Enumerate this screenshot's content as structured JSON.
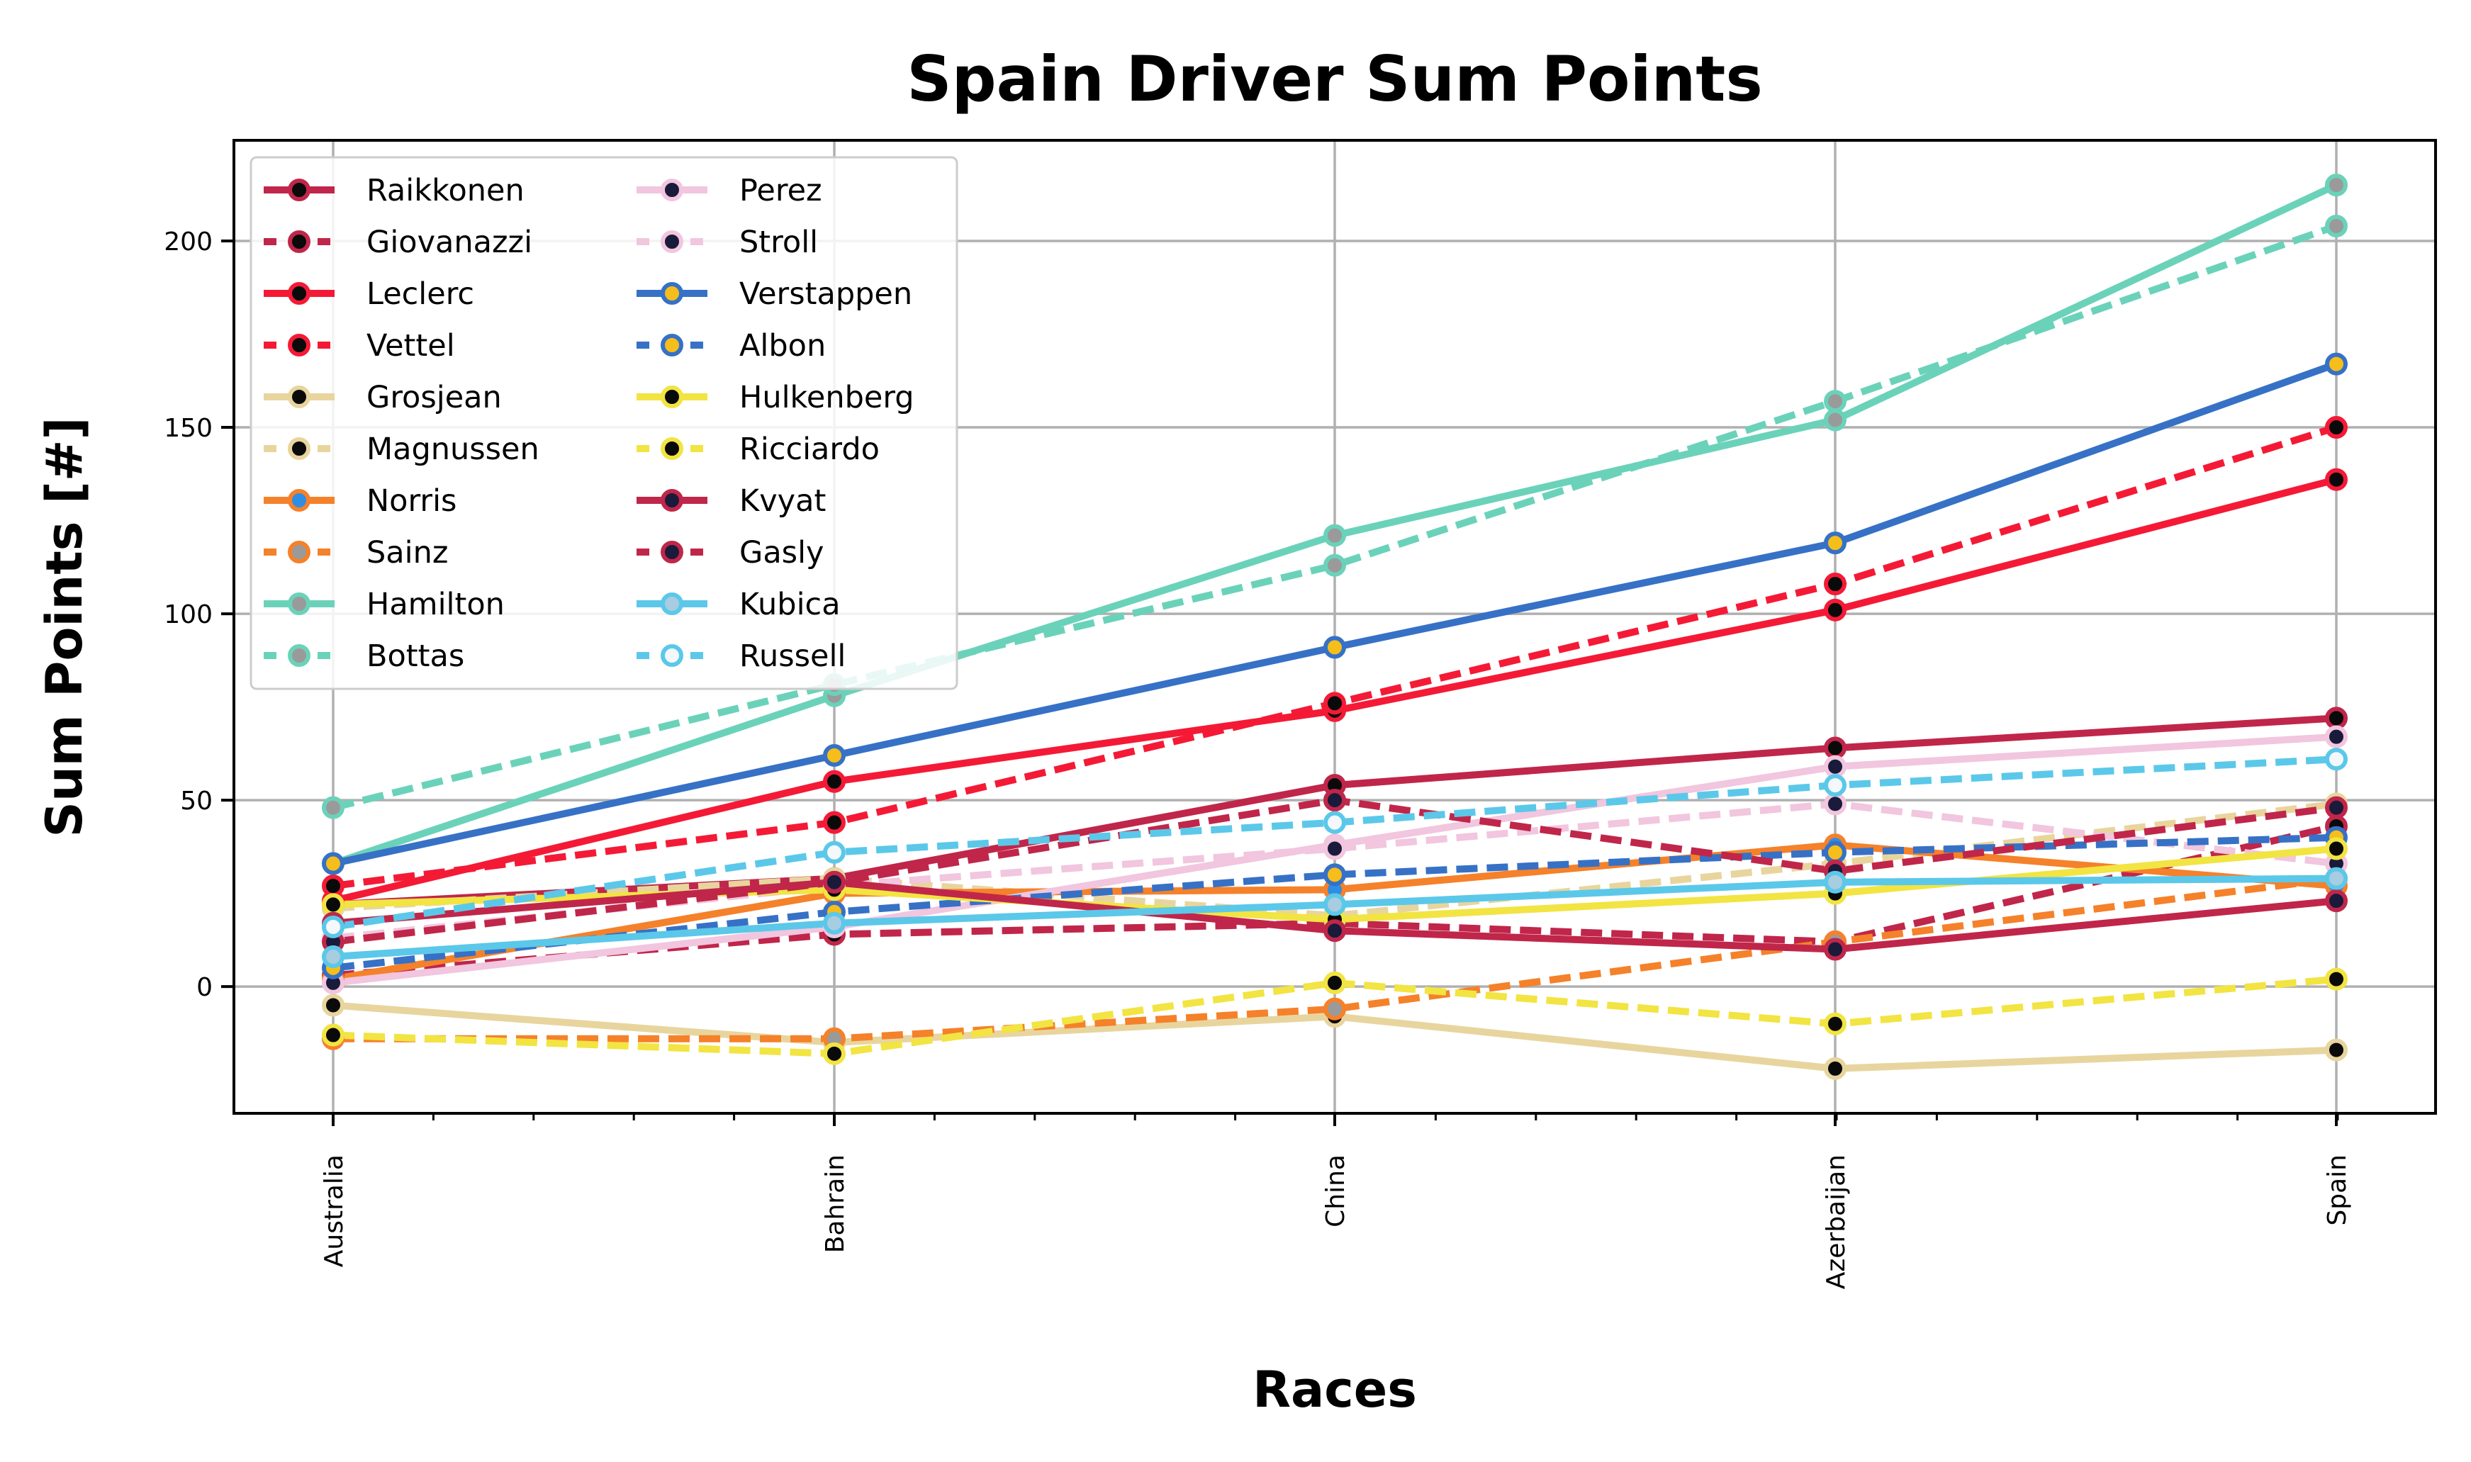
{
  "chart_data": {
    "type": "line",
    "title": "Spain Driver Sum Points",
    "xlabel": "Races",
    "ylabel": "Sum Points [#]",
    "categories": [
      "Australia",
      "Bahrain",
      "China",
      "Azerbaijan",
      "Spain"
    ],
    "ylim": [
      -34,
      227
    ],
    "yticks": [
      0,
      50,
      100,
      150,
      200
    ],
    "grid": true,
    "legend": "top-left, two columns",
    "series": [
      {
        "name": "Raikkonen",
        "color": "#C0264A",
        "dash": "solid",
        "marker": "#0a0a0a",
        "values": [
          22,
          29,
          54,
          64,
          72
        ]
      },
      {
        "name": "Giovanazzi",
        "color": "#C0264A",
        "dash": "dashed",
        "marker": "#0a0a0a",
        "values": [
          3,
          14,
          17,
          12,
          43
        ]
      },
      {
        "name": "Leclerc",
        "color": "#F41A36",
        "dash": "solid",
        "marker": "#0a0a0a",
        "values": [
          23,
          55,
          74,
          101,
          136
        ]
      },
      {
        "name": "Vettel",
        "color": "#F41A36",
        "dash": "dashed",
        "marker": "#0a0a0a",
        "values": [
          27,
          44,
          76,
          108,
          150
        ]
      },
      {
        "name": "Grosjean",
        "color": "#E8D59E",
        "dash": "solid",
        "marker": "#0a0a0a",
        "values": [
          -5,
          -15,
          -8,
          -22,
          -17
        ]
      },
      {
        "name": "Magnussen",
        "color": "#E8D59E",
        "dash": "dashed",
        "marker": "#0a0a0a",
        "values": [
          21,
          29,
          19,
          33,
          49
        ]
      },
      {
        "name": "Norris",
        "color": "#F5812A",
        "dash": "solid",
        "marker": "#2f8de4",
        "values": [
          2,
          25,
          26,
          38,
          27
        ]
      },
      {
        "name": "Sainz",
        "color": "#F5812A",
        "dash": "dashed",
        "marker": "#9a9a9a",
        "values": [
          -14,
          -14,
          -6,
          12,
          29
        ]
      },
      {
        "name": "Hamilton",
        "color": "#6BD2BA",
        "dash": "solid",
        "marker": "#9a9a9a",
        "values": [
          33,
          78,
          121,
          152,
          215
        ]
      },
      {
        "name": "Bottas",
        "color": "#6BD2BA",
        "dash": "dashed",
        "marker": "#9a9a9a",
        "values": [
          48,
          81,
          113,
          157,
          204
        ]
      },
      {
        "name": "Perez",
        "color": "#F1C6DE",
        "dash": "solid",
        "marker": "#1a1a3a",
        "values": [
          1,
          16,
          38,
          59,
          67
        ]
      },
      {
        "name": "Stroll",
        "color": "#F1C6DE",
        "dash": "dashed",
        "marker": "#1a1a3a",
        "values": [
          13,
          27,
          37,
          49,
          33
        ]
      },
      {
        "name": "Verstappen",
        "color": "#3671C6",
        "dash": "solid",
        "marker": "#F6BE1A",
        "values": [
          33,
          62,
          91,
          119,
          167
        ]
      },
      {
        "name": "Albon",
        "color": "#3671C6",
        "dash": "dashed",
        "marker": "#F6BE1A",
        "values": [
          5,
          20,
          30,
          36,
          40
        ]
      },
      {
        "name": "Hulkenberg",
        "color": "#F2E442",
        "dash": "solid",
        "marker": "#0a0a0a",
        "values": [
          22,
          26,
          18,
          25,
          37
        ]
      },
      {
        "name": "Ricciardo",
        "color": "#F2E442",
        "dash": "dashed",
        "marker": "#0a0a0a",
        "values": [
          -13,
          -18,
          1,
          -10,
          2
        ]
      },
      {
        "name": "Kvyat",
        "color": "#C0264A",
        "dash": "solid",
        "marker": "#1a1a3a",
        "values": [
          17,
          28,
          15,
          10,
          23
        ]
      },
      {
        "name": "Gasly",
        "color": "#C0264A",
        "dash": "dashed",
        "marker": "#1a1a3a",
        "values": [
          12,
          28,
          50,
          31,
          48
        ]
      },
      {
        "name": "Kubica",
        "color": "#5BC8E9",
        "dash": "solid",
        "marker": "#a8cce0",
        "values": [
          8,
          17,
          22,
          28,
          29
        ]
      },
      {
        "name": "Russell",
        "color": "#5BC8E9",
        "dash": "dashed",
        "marker": "#f4f8fb",
        "values": [
          16,
          36,
          44,
          54,
          61
        ]
      }
    ]
  }
}
